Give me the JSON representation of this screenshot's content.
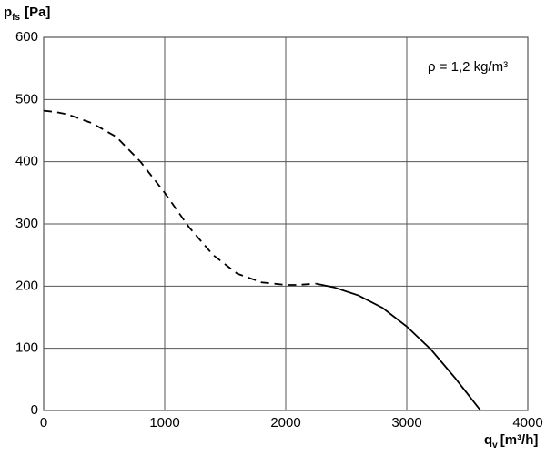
{
  "chart_data": {
    "type": "line",
    "ylabel": {
      "main": "p",
      "sub": "fs",
      "unit": "[Pa]"
    },
    "xlabel": {
      "main": "q",
      "sub": "v",
      "unit": "[m³/h]"
    },
    "annotation": "ρ = 1,2 kg/m³",
    "xlim": [
      0,
      4000
    ],
    "ylim": [
      0,
      600
    ],
    "xticks": [
      0,
      1000,
      2000,
      3000,
      4000
    ],
    "yticks": [
      0,
      100,
      200,
      300,
      400,
      500,
      600
    ],
    "grid": true,
    "series": [
      {
        "color": "#000000",
        "dashed": true,
        "x": [
          0,
          100,
          200,
          400,
          600,
          800,
          1000,
          1200,
          1400,
          1600,
          1800,
          2000,
          2100,
          2250
        ],
        "values": [
          482,
          480,
          476,
          462,
          440,
          400,
          350,
          295,
          250,
          220,
          206,
          202,
          202,
          204
        ]
      },
      {
        "color": "#000000",
        "dashed": false,
        "x": [
          2250,
          2400,
          2600,
          2800,
          3000,
          3200,
          3400,
          3610
        ],
        "values": [
          204,
          198,
          185,
          165,
          135,
          98,
          52,
          0
        ]
      }
    ]
  }
}
